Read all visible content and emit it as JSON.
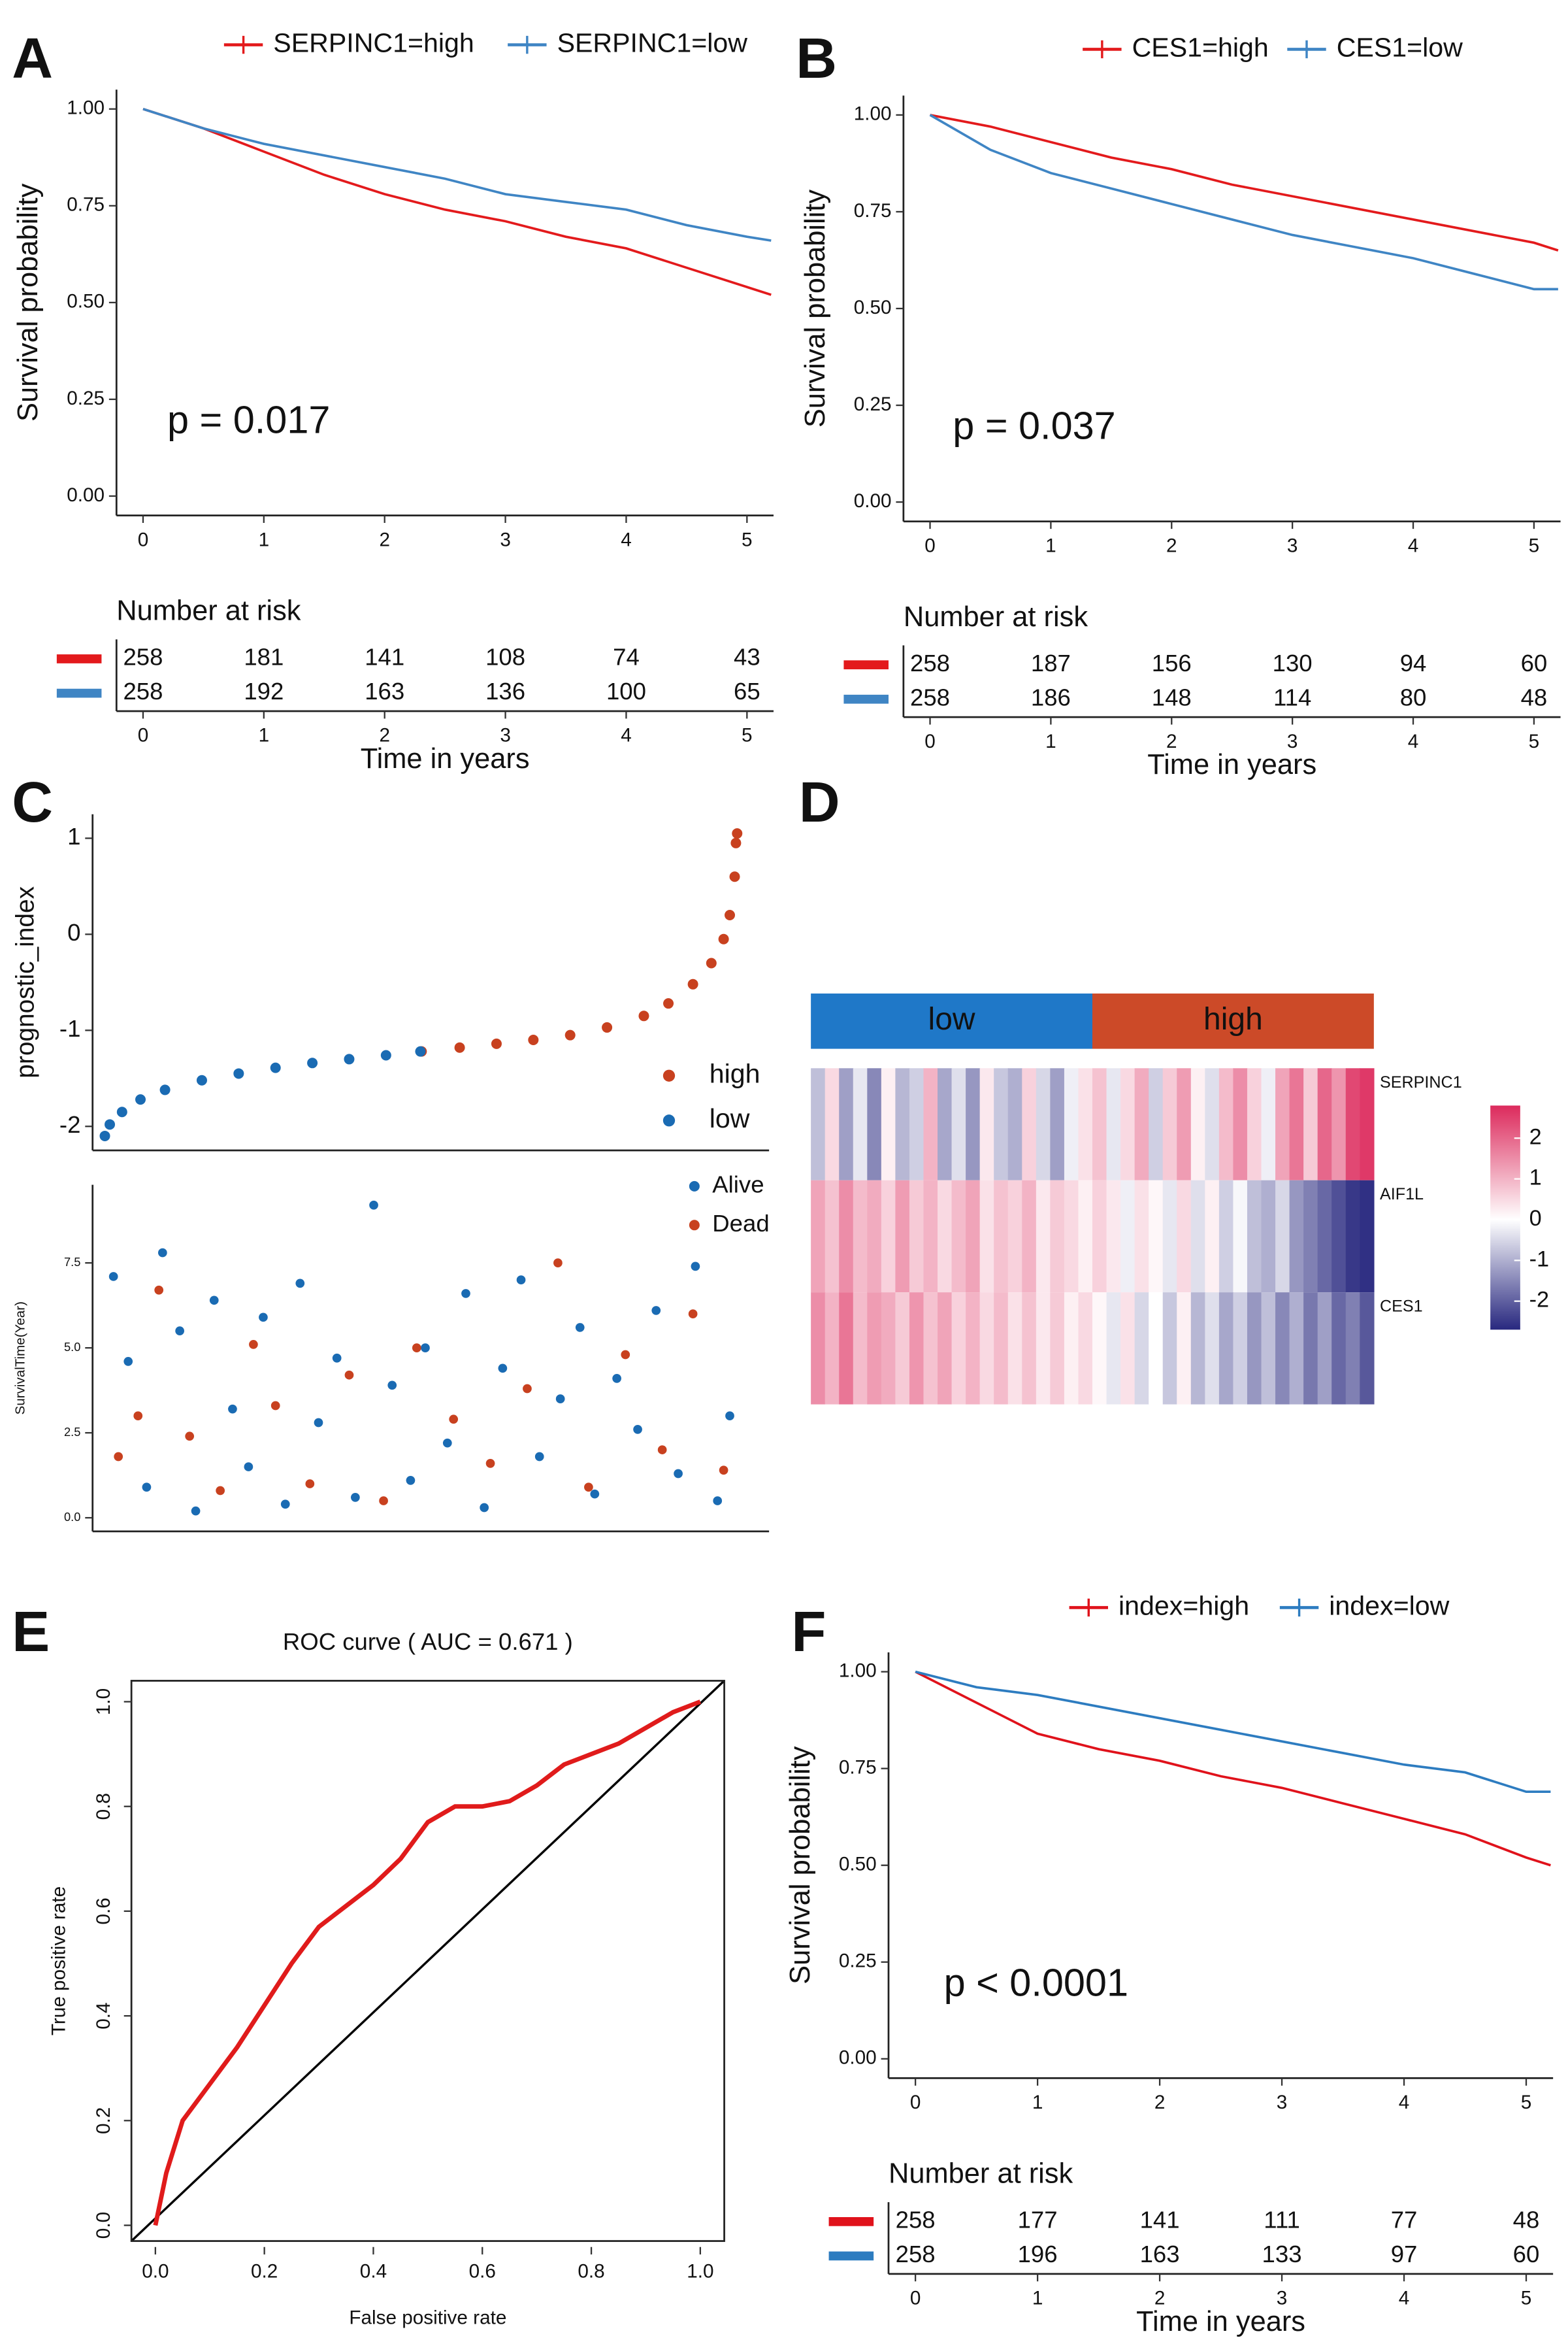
{
  "chart_data": [
    {
      "type": "survival",
      "panel": "A",
      "xlabel": "Time in years",
      "ylabel": "Survival probability",
      "annotation": "p = 0.017",
      "x": [
        0,
        0.5,
        1,
        1.5,
        2,
        2.5,
        3,
        3.5,
        4,
        4.5,
        5,
        5.2
      ],
      "series": [
        {
          "name": "SERPINC1=high",
          "color": "#e31a1c",
          "values": [
            1,
            0.95,
            0.89,
            0.83,
            0.78,
            0.74,
            0.71,
            0.67,
            0.64,
            0.59,
            0.54,
            0.52
          ]
        },
        {
          "name": "SERPINC1=low",
          "color": "#3f85c4",
          "values": [
            1,
            0.95,
            0.91,
            0.88,
            0.85,
            0.82,
            0.78,
            0.76,
            0.74,
            0.7,
            0.67,
            0.66
          ]
        }
      ],
      "xlim": [
        -0.22,
        5.22
      ],
      "xticks": [
        0,
        1,
        2,
        3,
        4,
        5
      ],
      "ylim": [
        -0.05,
        1.05
      ],
      "yticks": [
        {
          "value": 0,
          "label": "0.00"
        },
        0.25,
        {
          "value": 0.5,
          "label": "0.50"
        },
        0.75,
        {
          "value": 1,
          "label": "1.00"
        }
      ],
      "risk_table": {
        "title": "Number at risk",
        "rows": [
          [
            258,
            181,
            141,
            108,
            74,
            43
          ],
          [
            258,
            192,
            163,
            136,
            100,
            65
          ]
        ]
      }
    },
    {
      "type": "survival",
      "panel": "B",
      "xlabel": "Time in years",
      "ylabel": "Survival probability",
      "annotation": "p = 0.037",
      "x": [
        0,
        0.5,
        1,
        1.5,
        2,
        2.5,
        3,
        3.5,
        4,
        4.5,
        5,
        5.2
      ],
      "series": [
        {
          "name": "CES1=high",
          "color": "#e31a1c",
          "values": [
            1,
            0.97,
            0.93,
            0.89,
            0.86,
            0.82,
            0.79,
            0.76,
            0.73,
            0.7,
            0.67,
            0.65
          ]
        },
        {
          "name": "CES1=low",
          "color": "#3f85c4",
          "values": [
            1,
            0.91,
            0.85,
            0.81,
            0.77,
            0.73,
            0.69,
            0.66,
            0.63,
            0.59,
            0.55,
            0.55
          ]
        }
      ],
      "xlim": [
        -0.22,
        5.22
      ],
      "xticks": [
        0,
        1,
        2,
        3,
        4,
        5
      ],
      "ylim": [
        -0.05,
        1.05
      ],
      "yticks": [
        {
          "value": 0,
          "label": "0.00"
        },
        0.25,
        {
          "value": 0.5,
          "label": "0.50"
        },
        0.75,
        {
          "value": 1,
          "label": "1.00"
        }
      ],
      "risk_table": {
        "title": "Number at risk",
        "rows": [
          [
            258,
            187,
            156,
            130,
            94,
            60
          ],
          [
            258,
            186,
            148,
            114,
            80,
            48
          ]
        ]
      }
    },
    {
      "type": "scatter",
      "panel": "C",
      "ylabel": "prognostic_index",
      "xlim": [
        -9,
        542
      ],
      "ylim": [
        -2.25,
        1.25
      ],
      "yticks": [
        -2,
        -1,
        0,
        1
      ],
      "series": [
        {
          "name": "high",
          "color": "#c8411f",
          "x": [
            259,
            290,
            320,
            350,
            380,
            410,
            440,
            460,
            480,
            495,
            505,
            510,
            514,
            515,
            516
          ],
          "values": [
            -1.22,
            -1.18,
            -1.14,
            -1.1,
            -1.05,
            -0.97,
            -0.85,
            -0.72,
            -0.52,
            -0.3,
            -0.05,
            0.2,
            0.6,
            0.95,
            1.05
          ]
        },
        {
          "name": "low",
          "color": "#1a6bb3",
          "x": [
            1,
            5,
            15,
            30,
            50,
            80,
            110,
            140,
            170,
            200,
            230,
            258
          ],
          "values": [
            -2.1,
            -1.98,
            -1.85,
            -1.72,
            -1.62,
            -1.52,
            -1.45,
            -1.39,
            -1.34,
            -1.3,
            -1.26,
            -1.22
          ]
        }
      ]
    },
    {
      "type": "scatter",
      "ylabel": "SurvivalTime(Year)",
      "xlim": [
        -9,
        542
      ],
      "ylim": [
        -0.4,
        9.8
      ],
      "yticks": [
        {
          "value": 0,
          "label": "0.0"
        },
        2.5,
        {
          "value": 5,
          "label": "5.0"
        },
        7.5
      ],
      "series": [
        {
          "name": "Alive",
          "color": "#1a6bb3",
          "x": [
            8,
            20,
            35,
            48,
            62,
            75,
            90,
            105,
            118,
            130,
            148,
            160,
            175,
            190,
            205,
            220,
            235,
            250,
            262,
            280,
            295,
            310,
            325,
            340,
            355,
            372,
            388,
            400,
            418,
            435,
            450,
            468,
            482,
            500,
            510
          ],
          "values": [
            7.1,
            4.6,
            0.9,
            7.8,
            5.5,
            0.2,
            6.4,
            3.2,
            1.5,
            5.9,
            0.4,
            6.9,
            2.8,
            4.7,
            0.6,
            9.2,
            3.9,
            1.1,
            5,
            2.2,
            6.6,
            0.3,
            4.4,
            7,
            1.8,
            3.5,
            5.6,
            0.7,
            4.1,
            2.6,
            6.1,
            1.3,
            7.4,
            0.5,
            3
          ]
        },
        {
          "name": "Dead",
          "color": "#c8411f",
          "x": [
            12,
            28,
            45,
            70,
            95,
            122,
            140,
            168,
            200,
            228,
            255,
            285,
            315,
            345,
            370,
            395,
            425,
            455,
            480,
            505
          ],
          "values": [
            1.8,
            3,
            6.7,
            2.4,
            0.8,
            5.1,
            3.3,
            1,
            4.2,
            0.5,
            5,
            2.9,
            1.6,
            3.8,
            7.5,
            0.9,
            4.8,
            2,
            6,
            1.4
          ]
        }
      ]
    },
    {
      "type": "heatmap",
      "panel": "D",
      "groups": [
        {
          "name": "low",
          "color": "#1f78c8",
          "count": 20
        },
        {
          "name": "high",
          "color": "#cc4a28",
          "count": 20
        }
      ],
      "rows": [
        {
          "name": "SERPINC1",
          "values": [
            -0.8,
            0.5,
            -1.2,
            -0.3,
            -1.5,
            0.2,
            -0.9,
            -0.6,
            1,
            -1.1,
            -0.4,
            -1.3,
            0.3,
            -0.7,
            -1,
            0.6,
            -0.5,
            -1.2,
            -0.2,
            0.4,
            0.8,
            -0.3,
            0.5,
            1.1,
            -0.6,
            0.7,
            1.3,
            0.2,
            -0.4,
            0.9,
            1.5,
            0.6,
            -0.2,
            1.2,
            1.8,
            0.7,
            2,
            1.4,
            2.4,
            2.6
          ]
        },
        {
          "name": "AIF1L",
          "values": [
            1.2,
            0.8,
            1.5,
            0.9,
            1.1,
            0.6,
            1.3,
            0.7,
            1,
            0.5,
            0.9,
            1.2,
            0.4,
            0.8,
            0.6,
            1,
            0.3,
            0.7,
            0.5,
            0.2,
            0.6,
            0.3,
            -0.2,
            0.4,
            0.1,
            -0.3,
            0.5,
            -0.4,
            0.2,
            -0.6,
            -0.1,
            -0.8,
            -1,
            -0.5,
            -1.3,
            -1.6,
            -1.9,
            -2.2,
            -2.5,
            -2.6
          ]
        },
        {
          "name": "CES1",
          "values": [
            1.5,
            1,
            1.8,
            0.9,
            1.3,
            1.1,
            0.7,
            1.4,
            0.8,
            1.2,
            0.6,
            1,
            0.5,
            0.9,
            0.4,
            0.8,
            0.3,
            0.7,
            0.2,
            0.5,
            0.1,
            -0.3,
            0.4,
            -0.5,
            0,
            -0.7,
            0.2,
            -0.9,
            -0.4,
            -1.1,
            -0.6,
            -1.3,
            -0.8,
            -1.5,
            -1,
            -1.7,
            -1.2,
            -1.9,
            -1.6,
            -2.1
          ]
        }
      ],
      "colorbar": {
        "lim": [
          -2.7,
          2.8
        ],
        "ticks": [
          2,
          1,
          0,
          -1,
          -2
        ],
        "colors": [
          "#28287f",
          "#ffffff",
          "#dc2a5c"
        ]
      }
    },
    {
      "type": "line",
      "panel": "E",
      "title": "ROC curve ( AUC =  0.671 )",
      "xlabel": "False positive rate",
      "ylabel": "True positive rate",
      "x": [
        0,
        0.02,
        0.05,
        0.1,
        0.15,
        0.2,
        0.25,
        0.3,
        0.35,
        0.4,
        0.45,
        0.5,
        0.55,
        0.6,
        0.65,
        0.7,
        0.75,
        0.8,
        0.85,
        0.9,
        0.95,
        1
      ],
      "series": [
        {
          "color": "#e01b1b",
          "values": [
            0,
            0.1,
            0.2,
            0.27,
            0.34,
            0.42,
            0.5,
            0.57,
            0.61,
            0.65,
            0.7,
            0.77,
            0.8,
            0.8,
            0.81,
            0.84,
            0.88,
            0.9,
            0.92,
            0.95,
            0.98,
            1
          ]
        }
      ],
      "xlim": [
        -0.044,
        1.044
      ],
      "ylim": [
        -0.03,
        1.04
      ],
      "xticks": [
        {
          "value": 0,
          "label": "0.0"
        },
        0.2,
        0.4,
        0.6,
        0.8,
        {
          "value": 1,
          "label": "1.0"
        }
      ],
      "yticks": [
        {
          "value": 0,
          "label": "0.0"
        },
        0.2,
        0.4,
        0.6,
        0.8,
        {
          "value": 1,
          "label": "1.0"
        }
      ]
    },
    {
      "type": "survival",
      "panel": "F",
      "xlabel": "Time in years",
      "ylabel": "Survival probability",
      "annotation": "p < 0.0001",
      "x": [
        0,
        0.5,
        1,
        1.5,
        2,
        2.5,
        3,
        3.5,
        4,
        4.5,
        5,
        5.2
      ],
      "series": [
        {
          "name": "index=high",
          "color": "#e0121b",
          "values": [
            1,
            0.92,
            0.84,
            0.8,
            0.77,
            0.73,
            0.7,
            0.66,
            0.62,
            0.58,
            0.52,
            0.5
          ]
        },
        {
          "name": "index=low",
          "color": "#2d7cc0",
          "values": [
            1,
            0.96,
            0.94,
            0.91,
            0.88,
            0.85,
            0.82,
            0.79,
            0.76,
            0.74,
            0.69,
            0.69
          ]
        }
      ],
      "xlim": [
        -0.22,
        5.22
      ],
      "xticks": [
        0,
        1,
        2,
        3,
        4,
        5
      ],
      "ylim": [
        -0.05,
        1.05
      ],
      "yticks": [
        {
          "value": 0,
          "label": "0.00"
        },
        0.25,
        {
          "value": 0.5,
          "label": "0.50"
        },
        0.75,
        {
          "value": 1,
          "label": "1.00"
        }
      ],
      "risk_table": {
        "title": "Number at risk",
        "rows": [
          [
            258,
            177,
            141,
            111,
            77,
            48
          ],
          [
            258,
            196,
            163,
            133,
            97,
            60
          ]
        ]
      }
    }
  ]
}
